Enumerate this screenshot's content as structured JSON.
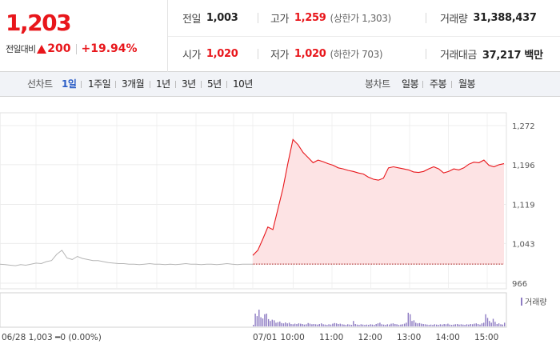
{
  "summary": {
    "price": "1,203",
    "change_label": "전일대비",
    "change_amount": "200",
    "change_rate": "+19.94%",
    "prev_close_label": "전일",
    "prev_close": "1,003",
    "open_label": "시가",
    "open": "1,020",
    "high_label": "고가",
    "high": "1,259",
    "high_limit": "(상한가 1,303)",
    "low_label": "저가",
    "low": "1,020",
    "low_limit": "(하한가 703)",
    "volume_label": "거래량",
    "volume": "31,388,437",
    "value_label": "거래대금",
    "value": "37,217 백만"
  },
  "toolbar": {
    "line_chart_label": "선차트",
    "periods": [
      "1일",
      "1주일",
      "3개월",
      "1년",
      "3년",
      "5년",
      "10년"
    ],
    "active_period": "1일",
    "candle_chart_label": "봉차트",
    "candles": [
      "일봉",
      "주봉",
      "월봉"
    ]
  },
  "chart": {
    "y_ticks": [
      "1,272",
      "1,196",
      "1,119",
      "1,043",
      "966"
    ],
    "volume_legend": "거래량",
    "prev_info": "06/28  1,003 ━0 (0.00%)",
    "date_label": "07/01",
    "time_labels": [
      "10:00",
      "11:00",
      "12:00",
      "13:00",
      "14:00",
      "15:00"
    ],
    "colors": {
      "price_line": "#e8161b",
      "price_fill": "#fde3e4",
      "prev_line": "#b5b5b5",
      "volume_bar": "#8e7cc3",
      "baseline": "#a01010"
    }
  },
  "chart_data": {
    "type": "area",
    "y_range": [
      966,
      1272
    ],
    "baseline": 1003,
    "prev_session": {
      "x_start": -1.3,
      "x_end": 0,
      "values": [
        1003,
        1002,
        1001,
        1000,
        1002,
        1001,
        1003,
        1005,
        1004,
        1008,
        1010,
        1022,
        1030,
        1015,
        1012,
        1018,
        1014,
        1012,
        1010,
        1010,
        1008,
        1006,
        1005,
        1004,
        1004,
        1003,
        1003,
        1002,
        1003,
        1004,
        1003,
        1003,
        1002,
        1003,
        1002,
        1003,
        1004,
        1003,
        1003,
        1002,
        1003,
        1003,
        1002,
        1003,
        1004,
        1003,
        1002,
        1003,
        1003,
        1003
      ]
    },
    "session": {
      "x_start": 0,
      "x_end": 6.5,
      "values": [
        1020,
        1030,
        1052,
        1075,
        1070,
        1110,
        1150,
        1200,
        1245,
        1235,
        1220,
        1210,
        1200,
        1205,
        1202,
        1198,
        1195,
        1190,
        1188,
        1185,
        1183,
        1180,
        1178,
        1172,
        1168,
        1166,
        1170,
        1190,
        1192,
        1190,
        1188,
        1186,
        1182,
        1181,
        1183,
        1188,
        1192,
        1188,
        1180,
        1183,
        1188,
        1186,
        1190,
        1197,
        1201,
        1200,
        1205,
        1195,
        1192,
        1196,
        1198
      ]
    },
    "volume": [
      0.05,
      0.42,
      0.34,
      0.55,
      0.3,
      0.26,
      0.4,
      0.42,
      0.24,
      0.18,
      0.22,
      0.2,
      0.12,
      0.14,
      0.16,
      0.11,
      0.1,
      0.13,
      0.1,
      0.12,
      0.08,
      0.07,
      0.09,
      0.08,
      0.1,
      0.09,
      0.08,
      0.06,
      0.07,
      0.11,
      0.09,
      0.07,
      0.08,
      0.07,
      0.06,
      0.08,
      0.1,
      0.07,
      0.06,
      0.05,
      0.07,
      0.06,
      0.09,
      0.11,
      0.1,
      0.08,
      0.09,
      0.07,
      0.06,
      0.05,
      0.07,
      0.06,
      0.05,
      0.18,
      0.08,
      0.06,
      0.05,
      0.07,
      0.06,
      0.05,
      0.06,
      0.05,
      0.07,
      0.06,
      0.05,
      0.08,
      0.1,
      0.12,
      0.07,
      0.06,
      0.05,
      0.07,
      0.06,
      0.09,
      0.1,
      0.08,
      0.07,
      0.05,
      0.06,
      0.07,
      0.09,
      0.12,
      0.45,
      0.4,
      0.18,
      0.2,
      0.12,
      0.1,
      0.11,
      0.09,
      0.08,
      0.07,
      0.06,
      0.05,
      0.06,
      0.05,
      0.07,
      0.06,
      0.05,
      0.07,
      0.06,
      0.08,
      0.07,
      0.09,
      0.06,
      0.05,
      0.06,
      0.07,
      0.08,
      0.06,
      0.07,
      0.06,
      0.05,
      0.07,
      0.06,
      0.08,
      0.07,
      0.09,
      0.1,
      0.08,
      0.06,
      0.1,
      0.12,
      0.4,
      0.28,
      0.18,
      0.12,
      0.25,
      0.15,
      0.08,
      0.1,
      0.07,
      0.06,
      0.12
    ]
  }
}
